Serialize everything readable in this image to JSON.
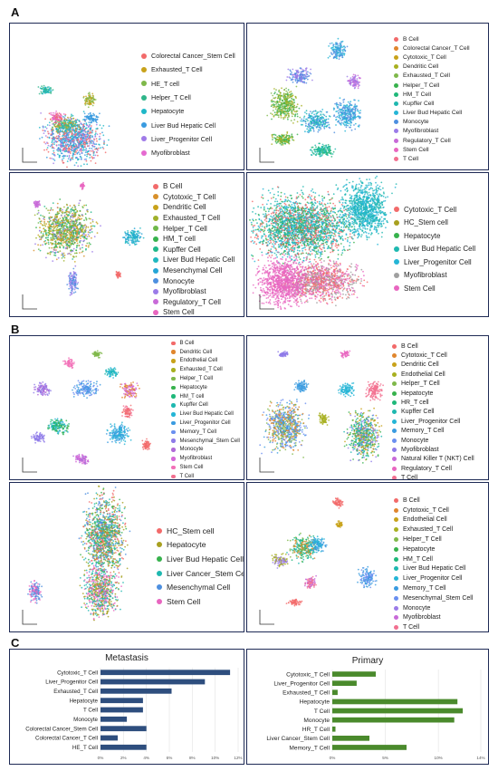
{
  "sections": {
    "A": {
      "letter": "A"
    },
    "B": {
      "letter": "B"
    },
    "C": {
      "letter": "C"
    }
  },
  "legend_colors": [
    "#f26a6a",
    "#c8a21a",
    "#7fb84a",
    "#37b24d",
    "#1fb89a",
    "#25b5d6",
    "#4d8fe0",
    "#8e7be8",
    "#d668d8",
    "#f270b8",
    "#ff7fb0",
    "#9fd14a",
    "#e3873b",
    "#5fb0a8",
    "#a0a0a0"
  ],
  "umap_panels": [
    {
      "id": "A1",
      "legend": [
        "Colorectal Cancer_Stem Cell",
        "Exhausted_T Cell",
        "HE_T cell",
        "Helper_T Cell",
        "Hepatocyte",
        "Liver Bud Hepatic Cell",
        "Liver_Progenitor Cell",
        "Myofibroblast"
      ],
      "colors": [
        "#f26a6a",
        "#c8a21a",
        "#7fb84a",
        "#2fb58a",
        "#1fb8c8",
        "#3a9be0",
        "#a07be8",
        "#e56ad0"
      ]
    },
    {
      "id": "A2",
      "legend": [
        "B Cell",
        "Colorectal Cancer_T Cell",
        "Cytotoxic_T Cell",
        "Dendritic Cell",
        "Exhausted_T Cell",
        "Helper_T Cell",
        "HM_T Cell",
        "Kupffer Cell",
        "Liver Bud Hepatic Cell",
        "Monocyte",
        "Myofibroblast",
        "Regulatory_T Cell",
        "Stem Cell",
        "T Cell"
      ],
      "colors": [
        "#f26a6a",
        "#e0862e",
        "#c8a21a",
        "#a8b020",
        "#7fb84a",
        "#37b24d",
        "#1fb87a",
        "#1fb8b0",
        "#25b5d6",
        "#4d8fe0",
        "#9b7be8",
        "#c86ad8",
        "#e866c0",
        "#f27090"
      ]
    },
    {
      "id": "A3",
      "legend": [
        "B Cell",
        "Cytotoxic_T Cell",
        "Dendritic Cell",
        "Exhausted_T Cell",
        "Helper_T Cell",
        "HM_T cell",
        "Kupffer Cell",
        "Liver Bud Hepatic Cell",
        "Mesenchymal Cell",
        "Monocyte",
        "Myofibroblast",
        "Regulatory_T Cell",
        "Stem Cell",
        "T Cell"
      ],
      "colors": [
        "#f26a6a",
        "#d8902a",
        "#c8a21a",
        "#9fb02a",
        "#6fb84a",
        "#37b24d",
        "#1fb88a",
        "#1fb8c0",
        "#25a5d6",
        "#4d8fe0",
        "#9b7be8",
        "#c86ad8",
        "#e866c0",
        "#f27090"
      ]
    },
    {
      "id": "A4",
      "legend": [
        "Cytotoxic_T Cell",
        "HC_Stem cell",
        "Hepatocyte",
        "Liver Bud Hepatic Cell",
        "Liver_Progenitor Cell",
        "Myofibroblast",
        "Stem Cell"
      ],
      "colors": [
        "#f26a6a",
        "#a8a020",
        "#37b24d",
        "#1fb8b0",
        "#25b5d6",
        "#a0a0a0",
        "#e866c0"
      ]
    },
    {
      "id": "B1",
      "legend": [
        "B Cell",
        "Dendritic Cell",
        "Endothelial Cell",
        "Exhausted_T Cell",
        "Helper_T Cell",
        "Hepatocyte",
        "HM_T cell",
        "Kupffer Cell",
        "Liver Bud Hepatic Cell",
        "Liver_Progenitor Cell",
        "Memory_T Cell",
        "Mesenchymal_Stem Cell",
        "Monocyte",
        "Myofibroblast",
        "Stem Cell",
        "T Cell"
      ],
      "colors": [
        "#f26a6a",
        "#e0862e",
        "#c8a21a",
        "#a8b020",
        "#7fb84a",
        "#37b24d",
        "#1fb87a",
        "#1fb8b0",
        "#25b5d6",
        "#3a9be0",
        "#6a8ff0",
        "#8e7be8",
        "#b06ad8",
        "#d668d8",
        "#f270b8",
        "#f27090"
      ]
    },
    {
      "id": "B2",
      "legend": [
        "B Cell",
        "Cytotoxic_T Cell",
        "Dendritic Cell",
        "Endothelial Cell",
        "Helper_T Cell",
        "Hepatocyte",
        "HR_T cell",
        "Kupffer Cell",
        "Liver_Progenitor Cell",
        "Memory_T Cell",
        "Monocyte",
        "Myofibroblast",
        "Natural Killer T (NKT) Cell",
        "Regulatory_T Cell",
        "T Cell"
      ],
      "colors": [
        "#f26a6a",
        "#e0862e",
        "#c8a21a",
        "#a8b020",
        "#7fb84a",
        "#37b24d",
        "#1fb87a",
        "#1fb8b0",
        "#25b5d6",
        "#3a9be0",
        "#6a8ff0",
        "#8e7be8",
        "#c86ad8",
        "#e866c0",
        "#f27090"
      ]
    },
    {
      "id": "B3",
      "legend": [
        "HC_Stem cell",
        "Hepatocyte",
        "Liver Bud Hepatic Cell",
        "Liver Cancer_Stem Cell",
        "Mesenchymal Cell",
        "Stem Cell"
      ],
      "colors": [
        "#f26a6a",
        "#a8a020",
        "#37b24d",
        "#1fb8b0",
        "#4d8fe0",
        "#e866c0"
      ]
    },
    {
      "id": "B4",
      "legend": [
        "B Cell",
        "Cytotoxic_T Cell",
        "Endothelial Cell",
        "Exhausted_T Cell",
        "Helper_T Cell",
        "Hepatocyte",
        "HM_T Cell",
        "Liver Bud Hepatic Cell",
        "Liver_Progenitor Cell",
        "Memory_T Cell",
        "Mesenchymal_Stem Cell",
        "Monocyte",
        "Myofibroblast",
        "T Cell"
      ],
      "colors": [
        "#f26a6a",
        "#e0862e",
        "#c8a21a",
        "#a8b020",
        "#7fb84a",
        "#37b24d",
        "#1fb87a",
        "#1fb8b0",
        "#25b5d6",
        "#3a9be0",
        "#6a8ff0",
        "#9b7be8",
        "#c86ad8",
        "#f27090"
      ]
    }
  ],
  "chart_data": [
    {
      "type": "bar",
      "orientation": "horizontal",
      "title": "Metastasis",
      "categories": [
        "Cytotoxic_T Cell",
        "Liver_Progenitor Cell",
        "Exhausted_T Cell",
        "Hepatocyte",
        "T Cell",
        "Monocyte",
        "Colorectal Cancer_Stem Cell",
        "Colorectal Cancer_T Cell",
        "HE_T Cell"
      ],
      "values": [
        11.3,
        9.1,
        6.2,
        3.7,
        3.7,
        2.3,
        4.0,
        1.5,
        4.0
      ],
      "xticks": [
        "0%",
        "2%",
        "4%",
        "6%",
        "8%",
        "10%",
        "12%"
      ],
      "xlim": [
        0,
        12
      ],
      "color": "#2e4e7e"
    },
    {
      "type": "bar",
      "orientation": "horizontal",
      "title": "Primary",
      "categories": [
        "Cytotoxic_T Cell",
        "Liver_Progenitor Cell",
        "Exhausted_T Cell",
        "Hepatocyte",
        "T Cell",
        "Monocyte",
        "HR_T Cell",
        "Liver Cancer_Stem Cell",
        "Memory_T Cell"
      ],
      "values": [
        4.1,
        2.3,
        0.5,
        11.8,
        12.3,
        11.5,
        0.3,
        3.5,
        7.0
      ],
      "xticks": [
        "0%",
        "5%",
        "10%",
        "14%"
      ],
      "xtick_values": [
        0,
        5,
        10,
        14
      ],
      "xlim": [
        0,
        14
      ],
      "color": "#4a8a2c"
    }
  ]
}
